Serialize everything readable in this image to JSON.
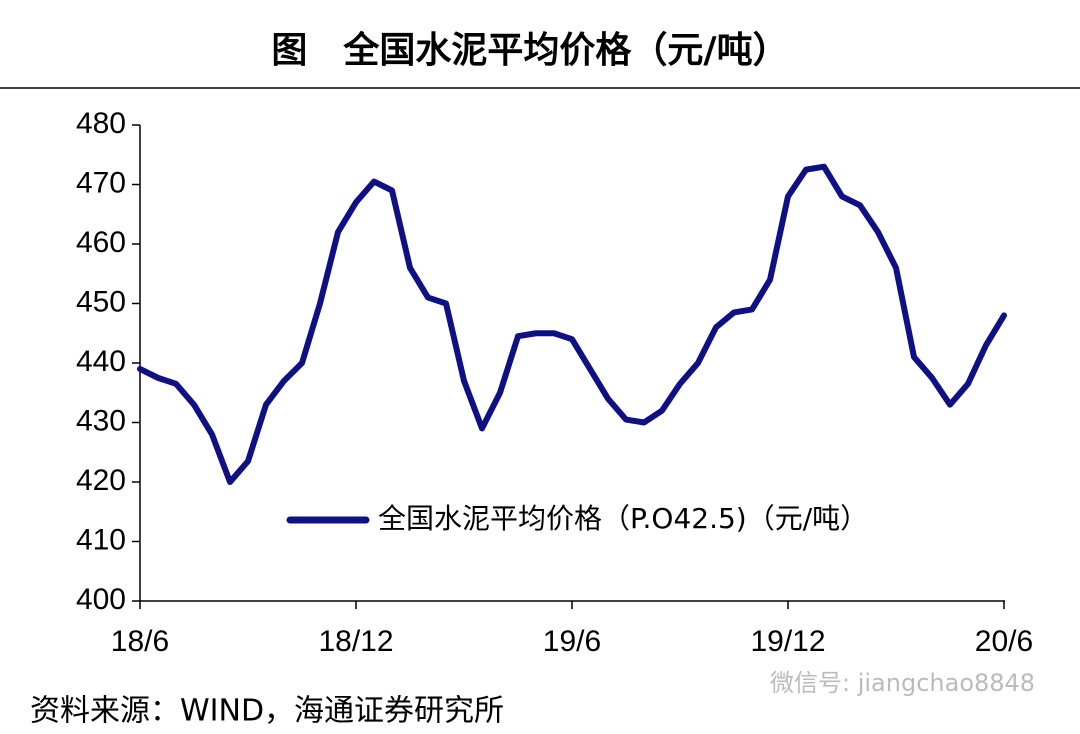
{
  "chart_data": {
    "type": "line",
    "title": "图　全国水泥平均价格（元/吨）",
    "source": "资料来源：WIND，海通证券研究所",
    "watermark": "微信号: jiangchao8848",
    "categories": [
      "18/6",
      null,
      null,
      null,
      null,
      null,
      null,
      null,
      null,
      null,
      null,
      null,
      "18/12",
      null,
      null,
      null,
      null,
      null,
      null,
      null,
      null,
      null,
      null,
      null,
      "19/6",
      null,
      null,
      null,
      null,
      null,
      null,
      null,
      null,
      null,
      null,
      null,
      "19/12",
      null,
      null,
      null,
      null,
      null,
      null,
      null,
      null,
      null,
      null,
      null,
      "20/6"
    ],
    "series": [
      {
        "name": "全国水泥平均价格（P.O42.5)（元/吨）",
        "color": "#101085",
        "values": [
          439,
          437.5,
          436.5,
          433,
          428,
          420,
          423.5,
          433,
          437,
          440,
          450,
          462,
          467,
          470.5,
          469,
          456,
          451,
          450,
          437,
          429,
          435,
          444.5,
          445,
          445,
          444,
          439,
          434,
          430.5,
          430,
          432,
          436.5,
          440,
          446,
          448.5,
          449,
          454,
          468,
          472.5,
          473,
          468,
          466.5,
          462,
          456,
          441,
          437.5,
          433,
          436.5,
          443,
          448
        ]
      }
    ],
    "ylim": [
      400,
      480
    ],
    "yticks": [
      400,
      410,
      420,
      430,
      440,
      450,
      460,
      470,
      480
    ],
    "grid": false
  }
}
